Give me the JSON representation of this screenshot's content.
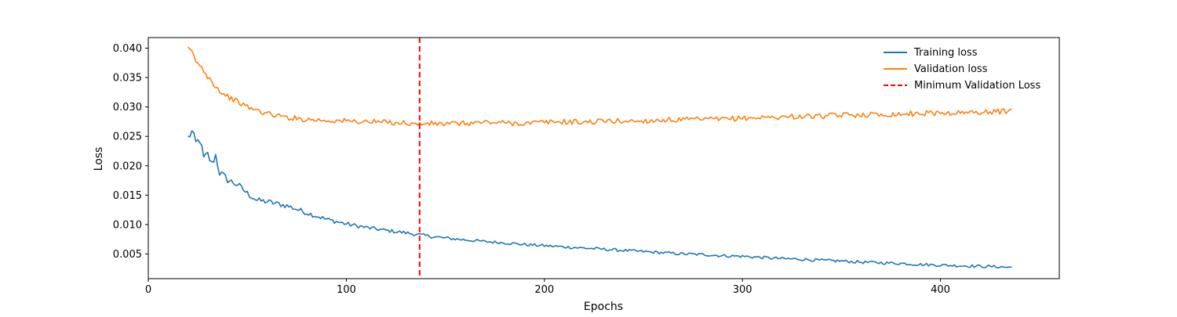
{
  "chart_data": {
    "type": "line",
    "xlabel": "Epochs",
    "ylabel": "Loss",
    "xlim": [
      0,
      460
    ],
    "ylim": [
      0.0008,
      0.0418
    ],
    "x_ticks": [
      0,
      100,
      200,
      300,
      400
    ],
    "x_tick_labels": [
      "0",
      "100",
      "200",
      "300",
      "400"
    ],
    "y_ticks": [
      0.005,
      0.01,
      0.015,
      0.02,
      0.025,
      0.03,
      0.035,
      0.04
    ],
    "y_tick_labels": [
      "0.005",
      "0.010",
      "0.015",
      "0.020",
      "0.025",
      "0.030",
      "0.035",
      "0.040"
    ],
    "grid": false,
    "legend_position": "top-right",
    "x_range": [
      20,
      436
    ],
    "series": [
      {
        "name": "Training loss",
        "color": "#1f77b4",
        "style": "solid",
        "x": [
          20,
          22,
          24,
          26,
          28,
          30,
          32,
          34,
          36,
          38,
          40,
          45,
          50,
          55,
          60,
          70,
          80,
          90,
          100,
          110,
          120,
          130,
          136,
          140,
          150,
          160,
          170,
          180,
          190,
          200,
          210,
          220,
          230,
          240,
          250,
          260,
          270,
          280,
          290,
          300,
          310,
          320,
          330,
          340,
          350,
          360,
          370,
          380,
          390,
          400,
          410,
          420,
          430,
          436
        ],
        "y": [
          0.0248,
          0.0257,
          0.0238,
          0.0245,
          0.0212,
          0.0219,
          0.0203,
          0.0218,
          0.0188,
          0.0183,
          0.0176,
          0.0168,
          0.0153,
          0.0141,
          0.0139,
          0.0132,
          0.012,
          0.0109,
          0.0101,
          0.0095,
          0.009,
          0.0086,
          0.0083,
          0.0081,
          0.0077,
          0.0074,
          0.0071,
          0.0069,
          0.0066,
          0.0064,
          0.0062,
          0.006,
          0.0058,
          0.0056,
          0.0054,
          0.0052,
          0.005,
          0.0049,
          0.0047,
          0.0046,
          0.0044,
          0.0042,
          0.0041,
          0.0039,
          0.0038,
          0.0036,
          0.0035,
          0.0034,
          0.0032,
          0.0031,
          0.003,
          0.0029,
          0.0028,
          0.0027
        ]
      },
      {
        "name": "Validation loss",
        "color": "#ff7f0e",
        "style": "solid",
        "x": [
          20,
          22,
          24,
          26,
          28,
          30,
          32,
          34,
          36,
          38,
          40,
          45,
          50,
          55,
          60,
          70,
          80,
          90,
          100,
          110,
          120,
          130,
          136,
          140,
          150,
          160,
          170,
          180,
          190,
          200,
          210,
          220,
          230,
          240,
          250,
          260,
          270,
          280,
          290,
          300,
          310,
          320,
          330,
          340,
          350,
          360,
          370,
          380,
          390,
          400,
          410,
          420,
          430,
          436
        ],
        "y": [
          0.0398,
          0.0394,
          0.0378,
          0.037,
          0.0362,
          0.0352,
          0.0345,
          0.0335,
          0.0328,
          0.0322,
          0.0318,
          0.0309,
          0.03,
          0.0294,
          0.0289,
          0.0282,
          0.0279,
          0.0277,
          0.0276,
          0.0275,
          0.0274,
          0.0273,
          0.027,
          0.0272,
          0.0271,
          0.0272,
          0.0274,
          0.0273,
          0.0272,
          0.0274,
          0.0275,
          0.0274,
          0.0276,
          0.0276,
          0.0276,
          0.0278,
          0.0278,
          0.0279,
          0.0279,
          0.0281,
          0.0282,
          0.0283,
          0.0284,
          0.0284,
          0.0286,
          0.0287,
          0.0287,
          0.0288,
          0.0289,
          0.029,
          0.029,
          0.0291,
          0.0292,
          0.0294
        ]
      }
    ],
    "vline": {
      "name": "Minimum Validation Loss",
      "x": 137,
      "color": "#ff0000",
      "style": "dashed"
    },
    "legend": [
      {
        "label": "Training loss",
        "color": "#1f77b4",
        "style": "solid"
      },
      {
        "label": "Validation loss",
        "color": "#ff7f0e",
        "style": "solid"
      },
      {
        "label": "Minimum Validation Loss",
        "color": "#ff0000",
        "style": "dashed"
      }
    ]
  }
}
